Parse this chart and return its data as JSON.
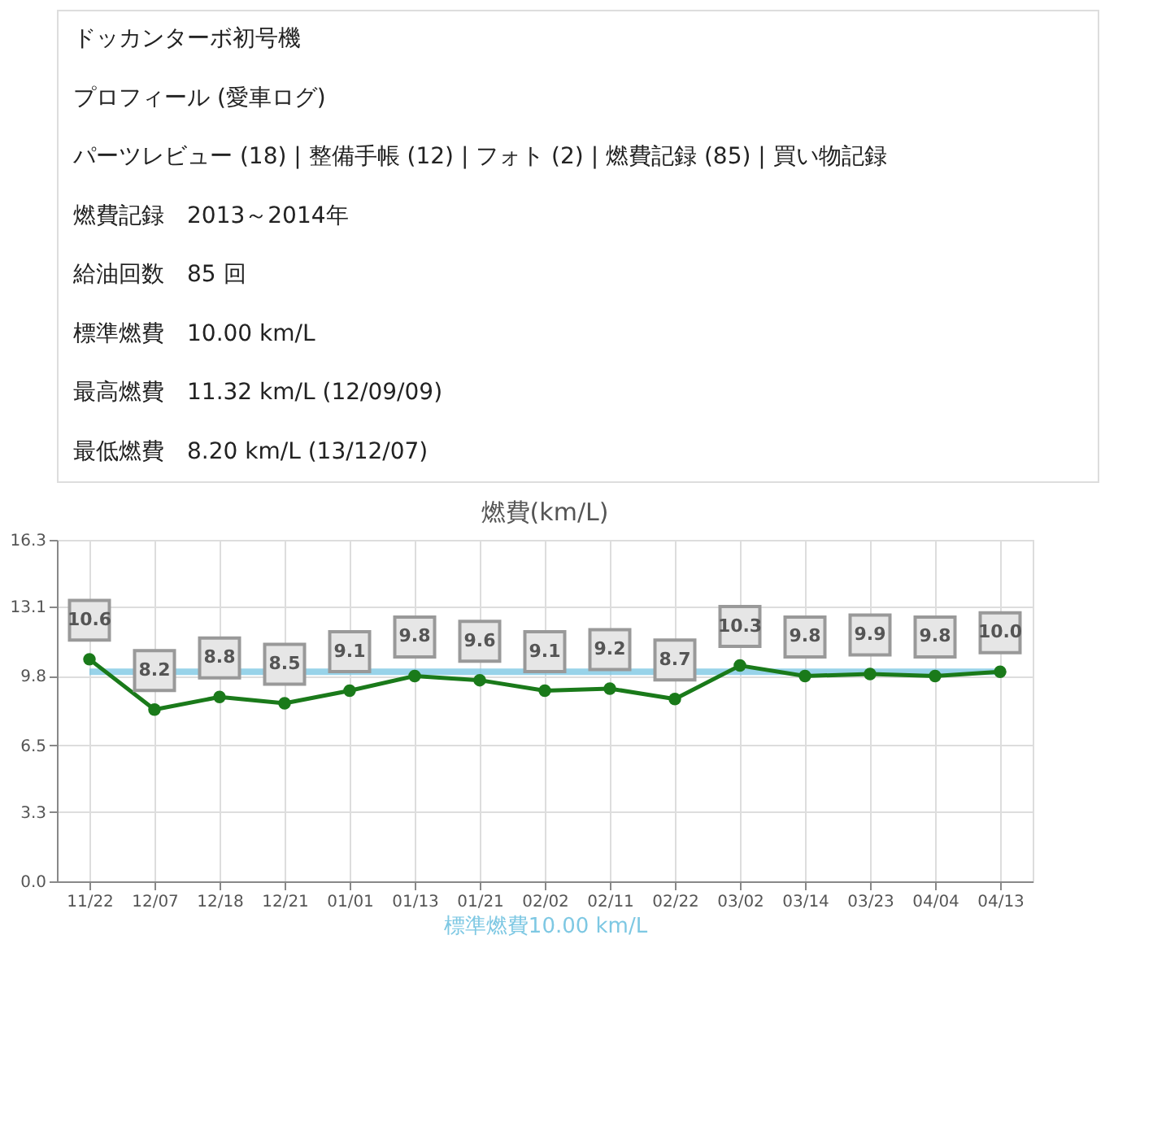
{
  "chart_data": {
    "type": "line",
    "title": "燃費(km/L)",
    "annotations": [
      "ドッカンターボ初号機",
      "プロフィール (愛車ログ)",
      "パーツレビュー (18) | 整備手帳 (12) | フォト (2) | 燃費記録 (85) | 買い物記録",
      "燃費記録　2013～2014年",
      "給油回数　85 回",
      "標準燃費　10.00 km/L",
      "最高燃費　11.32 km/L (12/09/09)",
      "最低燃費　8.20 km/L (13/12/07)"
    ],
    "categories": [
      "11/22",
      "12/07",
      "12/18",
      "12/21",
      "01/01",
      "01/13",
      "01/21",
      "02/02",
      "02/11",
      "02/22",
      "03/02",
      "03/14",
      "03/23",
      "04/04",
      "04/13"
    ],
    "series": [
      {
        "color": "#1a7a1a",
        "values": [
          10.6,
          8.2,
          8.8,
          8.5,
          9.1,
          9.8,
          9.6,
          9.1,
          9.2,
          8.7,
          10.3,
          9.8,
          9.9,
          9.8,
          10.0
        ]
      }
    ],
    "ylim": [
      0,
      16.3
    ],
    "yticks": [
      {
        "value": 0,
        "label": "0.0"
      },
      3.3,
      6.5,
      9.8,
      13.1,
      16.3
    ],
    "ref_lines": [
      {
        "axis": "y",
        "value": 10.0,
        "label": "標準燃費10.00 km/L",
        "color": "#7ec8e3"
      }
    ],
    "value_labels": [
      "10.6",
      "8.2",
      "8.8",
      "8.5",
      "9.1",
      "9.8",
      "9.6",
      "9.1",
      "9.2",
      "8.7",
      "10.3",
      "9.8",
      "9.9",
      "9.8",
      "10.0"
    ],
    "grid": true,
    "marker": "circle",
    "line_style": "solid"
  }
}
